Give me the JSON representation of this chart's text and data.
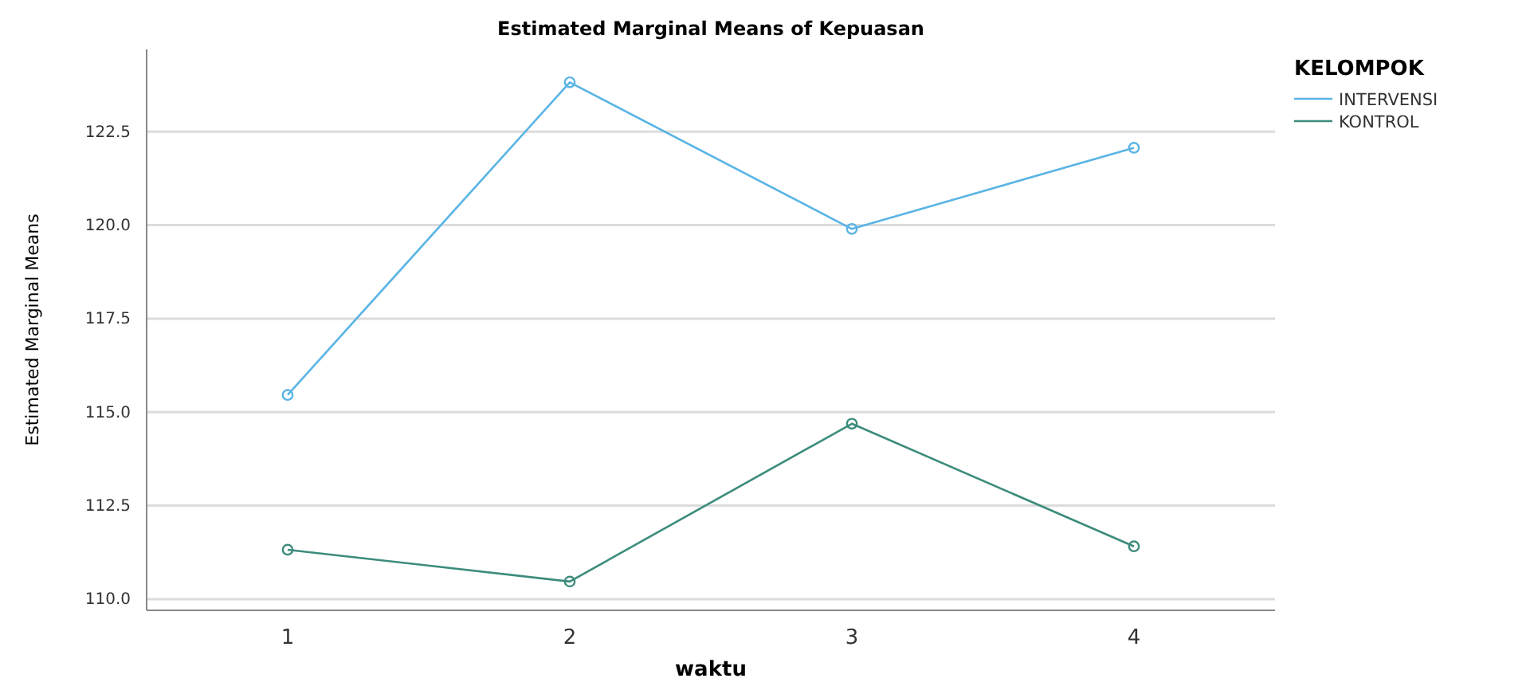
{
  "chart_data": {
    "type": "line",
    "title": "Estimated Marginal Means of Kepuasan",
    "xlabel": "waktu",
    "ylabel": "Estimated Marginal Means",
    "legend_title": "KELOMPOK",
    "categories": [
      "1",
      "2",
      "3",
      "4"
    ],
    "series": [
      {
        "name": "INTERVENSI",
        "color": "#5ab4e5",
        "values": [
          115.46,
          123.82,
          119.9,
          122.07
        ]
      },
      {
        "name": "KONTROL",
        "color": "#3c8c7c",
        "values": [
          111.32,
          110.47,
          114.69,
          111.41
        ]
      }
    ],
    "ylim": [
      109.7,
      124.7
    ],
    "yticks": [
      {
        "value": 110,
        "label": "110.0"
      },
      {
        "value": 112.5,
        "label": "112.5"
      },
      {
        "value": 115,
        "label": "115.0"
      },
      {
        "value": 117.5,
        "label": "117.5"
      },
      {
        "value": 120,
        "label": "120.0"
      },
      {
        "value": 122.5,
        "label": "122.5"
      }
    ],
    "grid": "y",
    "legend": "top right",
    "marker": "circle",
    "line_style": "solid"
  }
}
